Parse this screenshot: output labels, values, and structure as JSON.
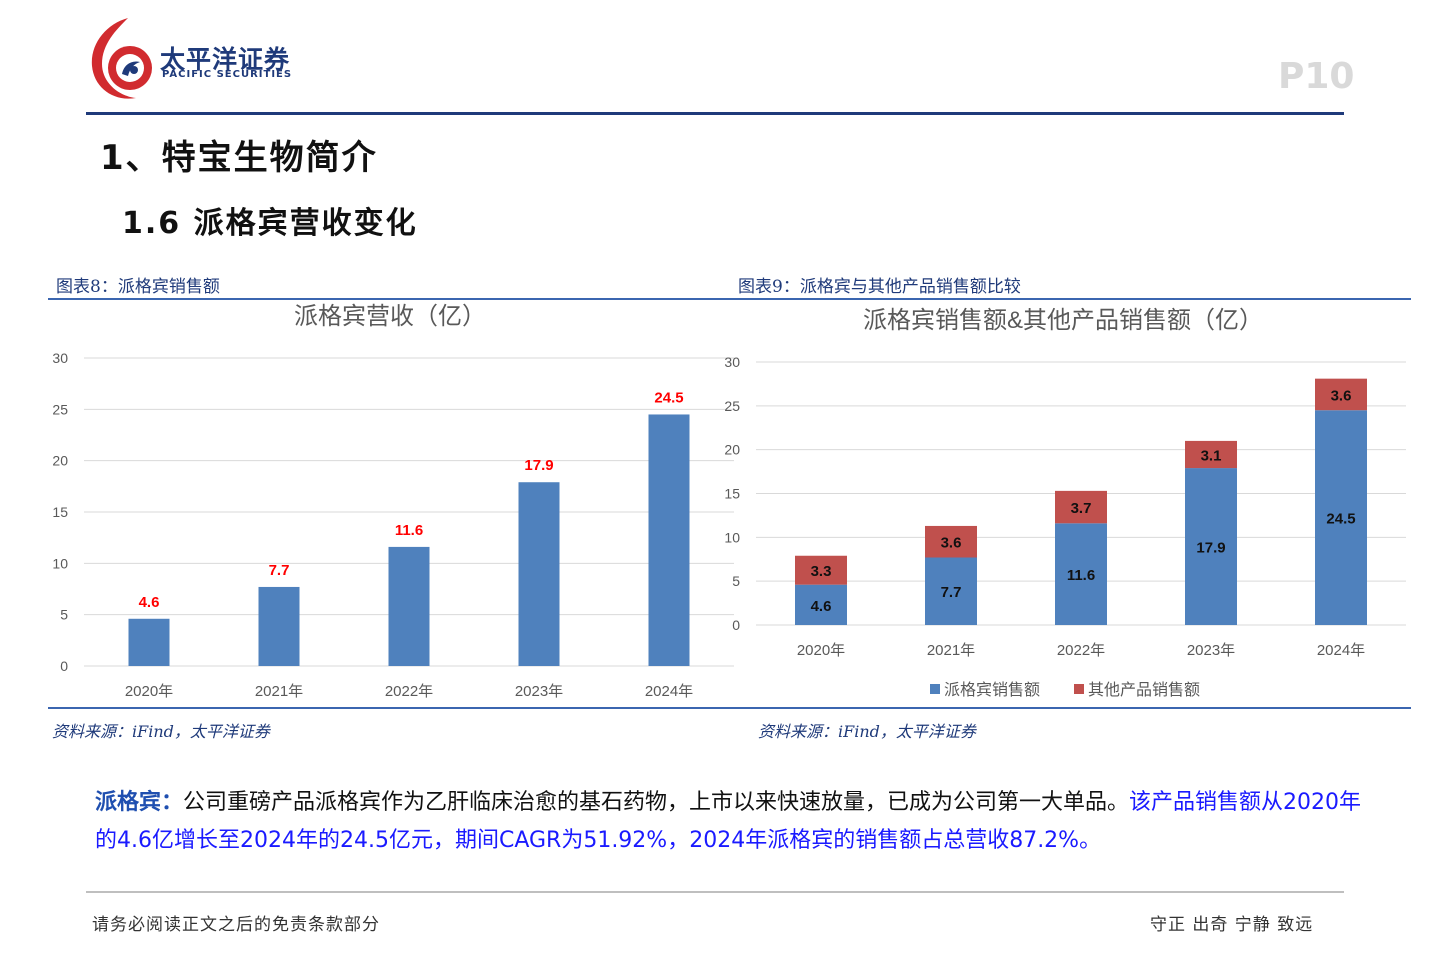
{
  "header": {
    "logo_cn": "太平洋证券",
    "logo_en": "PACIFIC SECURITIES",
    "page_number": "P10",
    "brand_color": "#1f3a7a",
    "logo_red": "#d12b2f"
  },
  "section_title": "1、特宝生物简介",
  "sub_title": "1.6 派格宾营收变化",
  "figure8": {
    "label": "图表8：派格宾销售额",
    "source": "资料来源：iFind，太平洋证券"
  },
  "figure9": {
    "label": "图表9：派格宾与其他产品销售额比较",
    "source": "资料来源：iFind，太平洋证券"
  },
  "chart_data": [
    {
      "type": "bar",
      "title": "派格宾营收（亿）",
      "categories": [
        "2020年",
        "2021年",
        "2022年",
        "2023年",
        "2024年"
      ],
      "values": [
        4.6,
        7.7,
        11.6,
        17.9,
        24.5
      ],
      "data_labels": [
        "4.6",
        "7.7",
        "11.6",
        "17.9",
        "24.5"
      ],
      "ylim": [
        0,
        30
      ],
      "yticks": [
        "0",
        "5",
        "10",
        "15",
        "20",
        "25",
        "30"
      ],
      "grid": true,
      "bar_color": "#4f81bd",
      "label_color": "#ff0000"
    },
    {
      "type": "bar",
      "stacked": true,
      "title": "派格宾销售额&其他产品销售额（亿）",
      "categories": [
        "2020年",
        "2021年",
        "2022年",
        "2023年",
        "2024年"
      ],
      "series": [
        {
          "name": "派格宾销售额",
          "values": [
            4.6,
            7.7,
            11.6,
            17.9,
            24.5
          ],
          "labels": [
            "4.6",
            "7.7",
            "11.6",
            "17.9",
            "24.5"
          ],
          "color": "#4f81bd"
        },
        {
          "name": "其他产品销售额",
          "values": [
            3.3,
            3.6,
            3.7,
            3.1,
            3.6
          ],
          "labels": [
            "3.3",
            "3.6",
            "3.7",
            "3.1",
            "3.6"
          ],
          "color": "#c0504d"
        }
      ],
      "ylim": [
        0,
        30
      ],
      "yticks": [
        "0",
        "5",
        "10",
        "15",
        "20",
        "25",
        "30"
      ],
      "grid": true,
      "legend_position": "bottom"
    }
  ],
  "summary": {
    "term": "派格宾：",
    "text1": "公司重磅产品派格宾作为乙肝临床治愈的基石药物，上市以来快速放量，已成为公司第一大单品。",
    "highlight": "该产品销售额从2020年的4.6亿增长至2024年的24.5亿元，期间CAGR为51.92%，2024年派格宾的销售额占总营收87.2%。"
  },
  "footer": {
    "left": "请务必阅读正文之后的免责条款部分",
    "right": "守正 出奇 宁静 致远"
  }
}
